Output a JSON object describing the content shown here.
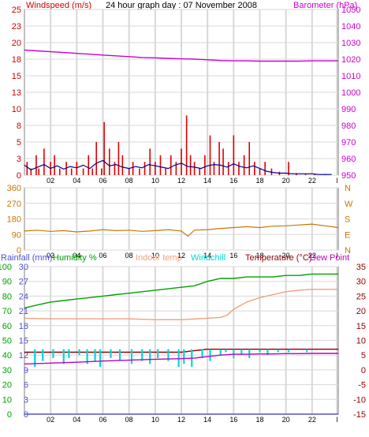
{
  "chart_data": [
    {
      "type": "line",
      "title": "24 hour graph day : 07 November 2008",
      "y_left_label": "Windspeed (m/s)",
      "y_right_label": "Barometer (hPa)",
      "y_left_ticks": [
        "25",
        "23",
        "20",
        "18",
        "15",
        "13",
        "10",
        "8",
        "5",
        "3",
        "0"
      ],
      "y_right_ticks": [
        "1050",
        "1040",
        "1030",
        "1020",
        "1010",
        "1000",
        "990",
        "980",
        "970",
        "960",
        "950"
      ],
      "x_ticks": [
        "02",
        "04",
        "06",
        "08",
        "10",
        "12",
        "14",
        "16",
        "18",
        "20",
        "22",
        "l"
      ],
      "ylim_left": [
        0,
        25
      ],
      "ylim_right": [
        950,
        1050
      ],
      "xlim": [
        0,
        24
      ],
      "series": [
        {
          "color": "#e00000",
          "style": "gust-bars",
          "x": [
            0.2,
            0.5,
            0.9,
            1.1,
            1.5,
            2.0,
            2.3,
            2.7,
            3.2,
            3.6,
            4.0,
            4.5,
            4.9,
            5.2,
            5.5,
            5.9,
            6.1,
            6.5,
            6.9,
            7.2,
            7.5,
            8.0,
            8.3,
            8.8,
            9.2,
            9.6,
            10.0,
            10.4,
            10.8,
            11.2,
            11.6,
            12.0,
            12.4,
            12.7,
            13.0,
            13.4,
            13.8,
            14.2,
            14.5,
            14.9,
            15.2,
            15.6,
            16.0,
            16.4,
            16.8,
            17.2,
            17.6,
            18.0,
            18.4,
            18.9,
            19.5,
            20.2,
            20.8,
            21.5,
            22.2,
            23.0
          ],
          "y": [
            2,
            1,
            3,
            1,
            4,
            2,
            3,
            1,
            2,
            1,
            2,
            1,
            3,
            1,
            5,
            1,
            8,
            4,
            2,
            5,
            3,
            1,
            2,
            1,
            2,
            4,
            2,
            3,
            1,
            3,
            2,
            4,
            9,
            3,
            2,
            1,
            3,
            6,
            2,
            5,
            4,
            2,
            6,
            2,
            3,
            5,
            2,
            1,
            2,
            1,
            0.5,
            2,
            0.3,
            0.2,
            0.2,
            0.1
          ]
        },
        {
          "color": "#000090",
          "style": "line",
          "x": [
            0,
            0.5,
            1,
            1.5,
            2,
            2.5,
            3,
            3.5,
            4,
            4.5,
            5,
            5.5,
            6,
            6.5,
            7,
            7.5,
            8,
            8.5,
            9,
            9.5,
            10,
            10.5,
            11,
            11.5,
            12,
            12.5,
            13,
            13.5,
            14,
            14.5,
            15,
            15.5,
            16,
            16.5,
            17,
            17.5,
            18,
            18.5,
            19,
            19.5,
            20,
            20.5,
            21,
            21.5,
            22,
            22.5,
            23,
            23.5
          ],
          "y": [
            1.5,
            0.8,
            1.2,
            1.6,
            1.0,
            1.4,
            0.9,
            1.3,
            1.1,
            1.5,
            1.0,
            1.8,
            2.2,
            1.4,
            1.6,
            1.2,
            1.0,
            1.3,
            1.1,
            1.6,
            1.4,
            1.2,
            1.0,
            1.5,
            1.8,
            1.3,
            1.2,
            1.0,
            1.4,
            1.6,
            1.5,
            1.2,
            1.7,
            1.3,
            1.1,
            1.4,
            1.0,
            0.6,
            0.4,
            0.3,
            0.3,
            0.2,
            0.2,
            0.2,
            0.2,
            0.1,
            0.1,
            0.1
          ]
        },
        {
          "color": "#cc00cc",
          "style": "line",
          "axis": "right",
          "x": [
            0,
            1,
            2,
            3,
            4,
            5,
            6,
            7,
            8,
            9,
            10,
            11,
            12,
            13,
            14,
            15,
            16,
            17,
            18,
            19,
            20,
            21,
            22,
            23,
            24
          ],
          "y": [
            1025.5,
            1025,
            1024.5,
            1024,
            1023.5,
            1023,
            1022.5,
            1022,
            1021.5,
            1021,
            1020.8,
            1020.5,
            1020.2,
            1020,
            1019.6,
            1019.2,
            1019,
            1019,
            1018.8,
            1018.8,
            1018.8,
            1018.8,
            1019,
            1019,
            1019
          ]
        }
      ]
    },
    {
      "type": "line",
      "y_left_ticks": [
        "360",
        "270",
        "180",
        "90",
        "0"
      ],
      "y_right_ticks": [
        "N",
        "W",
        "S",
        "E",
        "N"
      ],
      "ylim": [
        0,
        360
      ],
      "xlim": [
        0,
        24
      ],
      "series": [
        {
          "color": "#c87800",
          "x": [
            0,
            1,
            2,
            3,
            4,
            5,
            6,
            7,
            8,
            9,
            10,
            11,
            12,
            12.5,
            13,
            14,
            15,
            16,
            17,
            18,
            19,
            20,
            21,
            22,
            23,
            24
          ],
          "y": [
            110,
            115,
            108,
            112,
            105,
            110,
            118,
            112,
            115,
            108,
            112,
            118,
            110,
            80,
            115,
            118,
            125,
            130,
            135,
            130,
            138,
            140,
            145,
            150,
            140,
            130
          ]
        }
      ]
    },
    {
      "type": "line",
      "labels": {
        "rainfall": "Rainfall (mm)",
        "humidity": "Humidity %",
        "indoor": "Indoor temp",
        "windchill": "Windchill",
        "temperature": "Temperature (°C)",
        "dewpoint": "Dew Point"
      },
      "y_left_ticks_rain": [
        "30",
        "27",
        "24",
        "21",
        "18",
        "15",
        "12",
        "9",
        "6",
        "3",
        "0"
      ],
      "y_left_ticks_hum": [
        "100",
        "90",
        "80",
        "70",
        "60",
        "50",
        "40",
        "30",
        "20",
        "10",
        "0"
      ],
      "y_right_ticks": [
        "35",
        "30",
        "25",
        "20",
        "15",
        "10",
        "5",
        "0",
        "-5",
        "-10",
        "-15"
      ],
      "ylim_temp": [
        -15,
        35
      ],
      "xlim": [
        0,
        24
      ],
      "colors": {
        "rainfall": "#5050d0",
        "humidity": "#00a000",
        "indoor": "#f0a080",
        "windchill": "#00d8d8",
        "temperature": "#900000",
        "dewpoint": "#c000c0"
      },
      "series": [
        {
          "name": "Humidity %",
          "color": "#00a000",
          "axis": "humidity",
          "x": [
            0,
            1,
            2,
            3,
            4,
            5,
            6,
            7,
            8,
            9,
            10,
            11,
            12,
            13,
            14,
            15,
            16,
            17,
            18,
            19,
            20,
            21,
            22,
            23,
            24
          ],
          "y": [
            72,
            74,
            76,
            77,
            78,
            79,
            80,
            81,
            82,
            83,
            84,
            85,
            86,
            87,
            90,
            92,
            92,
            93,
            93,
            93,
            94,
            94,
            95,
            95,
            95
          ]
        },
        {
          "name": "Indoor temp",
          "color": "#f0a080",
          "axis": "temp",
          "x": [
            0,
            2,
            4,
            6,
            8,
            10,
            12,
            14,
            15,
            15.5,
            16,
            17,
            18,
            19,
            20,
            21,
            22,
            23,
            24
          ],
          "y": [
            17.5,
            17.3,
            17.3,
            17.3,
            17.3,
            17,
            17,
            17.5,
            17.8,
            18.5,
            20.5,
            23,
            24.5,
            25.5,
            26.5,
            27,
            27.3,
            27.3,
            27.3
          ]
        },
        {
          "name": "Temperature (°C)",
          "color": "#900000",
          "axis": "temp",
          "x": [
            0,
            2,
            4,
            6,
            8,
            10,
            12,
            13,
            14,
            15,
            16,
            17,
            18,
            19,
            20,
            21,
            22,
            23,
            24
          ],
          "y": [
            6,
            6,
            6,
            6,
            6,
            6,
            6,
            6.5,
            7,
            7,
            7,
            7,
            7,
            7,
            7,
            7,
            7,
            7,
            7
          ]
        },
        {
          "name": "Windchill",
          "color": "#00d8d8",
          "axis": "temp",
          "style": "bars",
          "x": [
            0.8,
            1.4,
            2.2,
            3.0,
            3.4,
            4.2,
            4.8,
            5.4,
            5.8,
            6.6,
            7.3,
            8.2,
            9.0,
            9.6,
            10.2,
            11.0,
            11.8,
            12.2,
            12.8,
            13.6,
            14.2,
            15.0,
            15.4,
            16.0,
            16.6,
            17.2,
            18.0,
            18.6,
            19.4,
            20.2,
            21.6
          ],
          "y": [
            1,
            3,
            4,
            2,
            4,
            5,
            2,
            3,
            1,
            4,
            3,
            2,
            3,
            2,
            4,
            3,
            1,
            2,
            1,
            4,
            3,
            5,
            6,
            4,
            5,
            4,
            6,
            5,
            6,
            6,
            6
          ]
        },
        {
          "name": "Dew Point",
          "color": "#c000c0",
          "axis": "temp",
          "x": [
            0,
            2,
            4,
            6,
            8,
            10,
            12,
            13,
            14,
            15,
            16,
            17,
            18,
            19,
            20,
            21,
            22,
            23,
            24
          ],
          "y": [
            2,
            2.3,
            2.6,
            3,
            3.3,
            3.6,
            3.8,
            4,
            4.5,
            5,
            5.3,
            5.3,
            5.4,
            5.4,
            5.5,
            5.5,
            5.6,
            5.6,
            5.6
          ]
        },
        {
          "name": "Rainfall (mm)",
          "color": "#5050d0",
          "axis": "rain",
          "x": [
            0,
            24
          ],
          "y": [
            0,
            0
          ]
        }
      ]
    }
  ]
}
